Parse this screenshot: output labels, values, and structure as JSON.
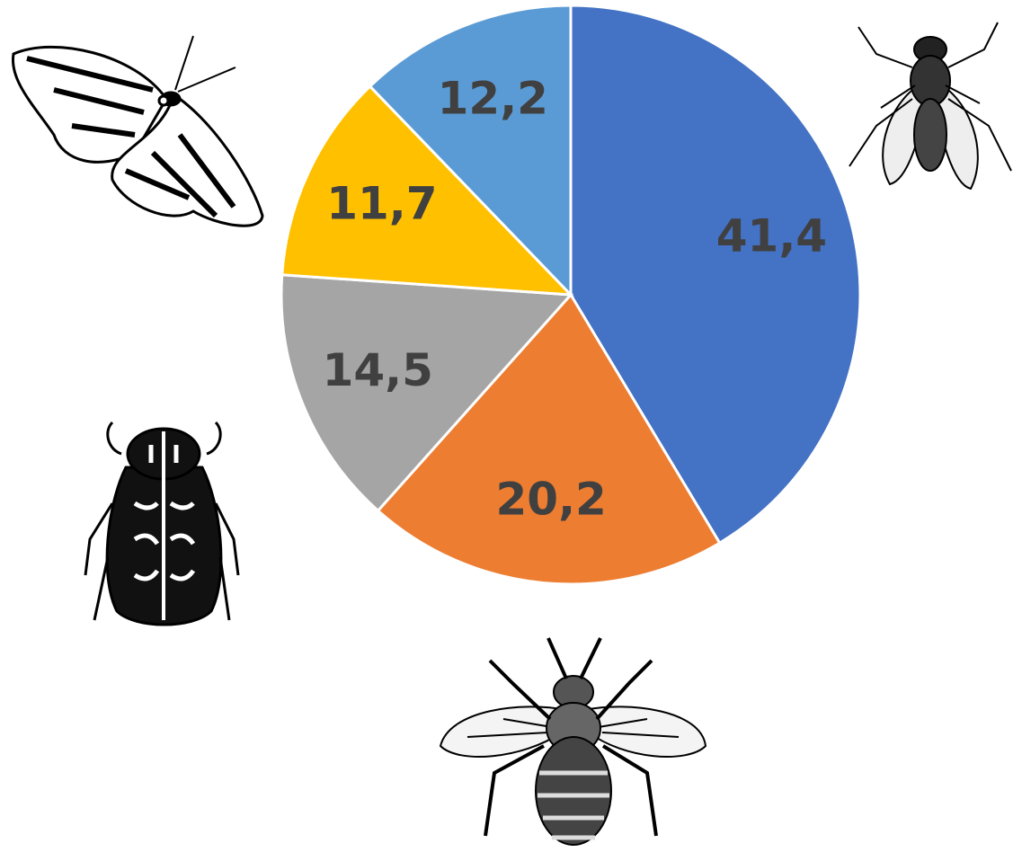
{
  "chart_data": {
    "type": "pie",
    "values": [
      41.4,
      20.2,
      14.5,
      11.7,
      12.2
    ],
    "value_labels": [
      "41,4",
      "20,2",
      "14,5",
      "11,7",
      "12,2"
    ],
    "colors": [
      "#4472c4",
      "#ed7d31",
      "#a5a5a5",
      "#ffc000",
      "#5b9bd5"
    ]
  }
}
